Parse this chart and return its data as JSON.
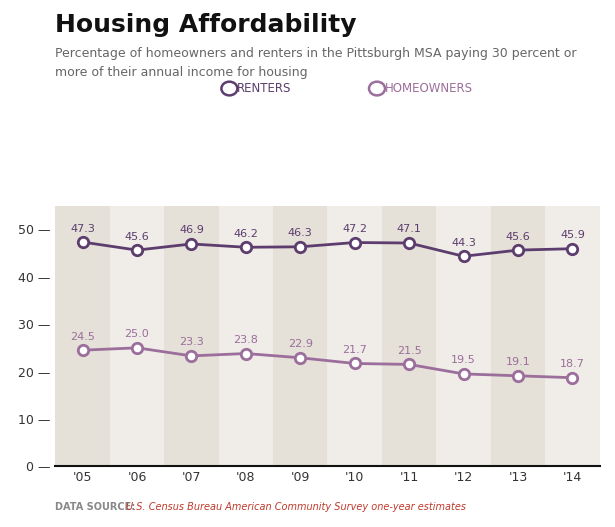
{
  "title": "Housing Affordability",
  "subtitle_line1": "Percentage of homeowners and renters in the Pittsburgh MSA paying 30 percent or",
  "subtitle_line2": "more of their annual income for housing",
  "datasource_label": "DATA SOURCE:",
  "datasource_text": "U.S. Census Bureau American Community Survey one-year estimates",
  "years": [
    "'05",
    "'06",
    "'07",
    "'08",
    "'09",
    "'10",
    "'11",
    "'12",
    "'13",
    "'14"
  ],
  "renters": [
    47.3,
    45.6,
    46.9,
    46.2,
    46.3,
    47.2,
    47.1,
    44.3,
    45.6,
    45.9
  ],
  "homeowners": [
    24.5,
    25.0,
    23.3,
    23.8,
    22.9,
    21.7,
    21.5,
    19.5,
    19.1,
    18.7
  ],
  "renters_color": "#5c3d6e",
  "homeowners_color": "#9b6e9b",
  "bg_stripe_color": "#e5e0d8",
  "top_line_color": "#9b6e9b",
  "ylim": [
    0,
    55
  ],
  "yticks": [
    0,
    10,
    20,
    30,
    40,
    50
  ],
  "stripe_indices": [
    0,
    2,
    4,
    6,
    8
  ],
  "title_fontsize": 18,
  "subtitle_fontsize": 9,
  "axis_bg": "#f0ede8",
  "fig_bg": "#ffffff"
}
